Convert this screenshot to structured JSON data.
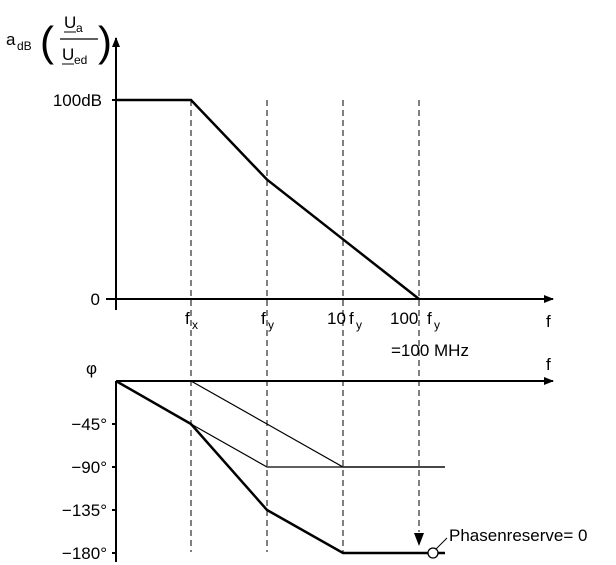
{
  "chart_data": [
    {
      "type": "line",
      "title": "",
      "ylabel": {
        "prefix": "a",
        "prefix_sub": "dB",
        "num_main": "U",
        "num_sub": "a",
        "den_main": "U",
        "den_sub": "ed",
        "open_paren": "(",
        "close_paren": ")"
      },
      "xlabel": "f",
      "x_ticks": [
        {
          "main": "f",
          "sub": "x"
        },
        {
          "main": "f",
          "sub": "y"
        },
        {
          "prefix": "10",
          "main": "f",
          "sub": "y"
        },
        {
          "prefix": "100",
          "main": "f",
          "sub": "y"
        }
      ],
      "x_note": "=100 MHz",
      "y_ticks": [
        "100dB",
        "0"
      ],
      "x": [
        0,
        1,
        2,
        3,
        4
      ],
      "series": [
        {
          "values": [
            100,
            100,
            60,
            30,
            0
          ]
        }
      ],
      "ylim": [
        0,
        100
      ]
    },
    {
      "type": "line",
      "title": "",
      "ylabel": "φ",
      "xlabel": "f",
      "y_ticks": [
        "−45°",
        "−90°",
        "−135°",
        "−180°"
      ],
      "x": [
        0,
        1,
        2,
        3,
        4
      ],
      "series": [
        {
          "values": [
            0,
            -45,
            -135,
            -180,
            -180
          ]
        },
        {
          "values": [
            0,
            -45,
            -90,
            -90,
            -90
          ]
        },
        {
          "values": [
            0,
            0,
            -45,
            -90,
            -90
          ]
        }
      ],
      "ylim": [
        -180,
        0
      ],
      "annotation": "Phasenreserve= 0"
    }
  ]
}
